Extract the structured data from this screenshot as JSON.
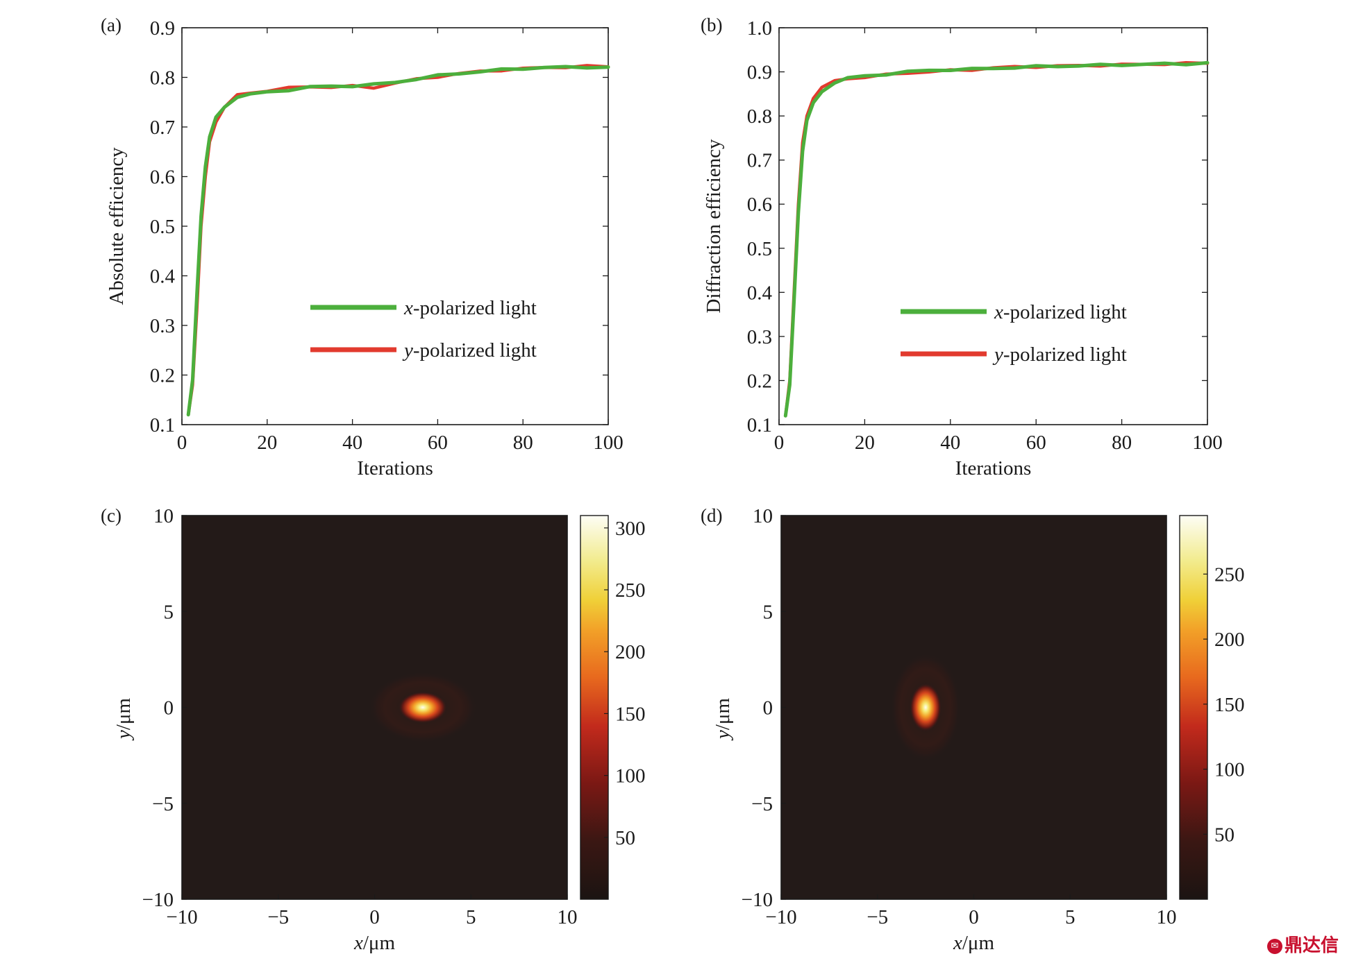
{
  "panels": {
    "a": {
      "label": "(a)"
    },
    "b": {
      "label": "(b)"
    },
    "c": {
      "label": "(c)"
    },
    "d": {
      "label": "(d)"
    }
  },
  "colors": {
    "x_series": "#4caf3c",
    "y_series": "#e23a2e",
    "heatmap_bg": "#231a18"
  },
  "watermark": {
    "text": "鼎达信"
  },
  "chart_data": [
    {
      "panel": "(a)",
      "type": "line",
      "title": "",
      "xlabel": "Iterations",
      "ylabel": "Absolute efficiency",
      "xlim": [
        0,
        100
      ],
      "ylim": [
        0.1,
        0.9
      ],
      "xticks": [
        "0",
        "20",
        "40",
        "60",
        "80",
        "100"
      ],
      "yticks": [
        "0.1",
        "0.2",
        "0.3",
        "0.4",
        "0.5",
        "0.6",
        "0.7",
        "0.8",
        "0.9"
      ],
      "legend": {
        "placement": "center-right",
        "entries": [
          {
            "prefix": "x",
            "text": "-polarized light"
          },
          {
            "prefix": "y",
            "text": "-polarized light"
          }
        ]
      },
      "series": [
        {
          "name": "x-polarized light",
          "color": "#4caf3c",
          "points": [
            [
              1.5,
              0.12
            ],
            [
              2.5,
              0.19
            ],
            [
              3.5,
              0.36
            ],
            [
              4.5,
              0.52
            ],
            [
              5.5,
              0.62
            ],
            [
              6.5,
              0.68
            ],
            [
              8,
              0.72
            ],
            [
              10,
              0.74
            ],
            [
              13,
              0.76
            ],
            [
              16,
              0.765
            ],
            [
              20,
              0.77
            ],
            [
              25,
              0.775
            ],
            [
              30,
              0.78
            ],
            [
              35,
              0.782
            ],
            [
              40,
              0.783
            ],
            [
              45,
              0.785
            ],
            [
              50,
              0.79
            ],
            [
              55,
              0.797
            ],
            [
              60,
              0.803
            ],
            [
              65,
              0.808
            ],
            [
              70,
              0.812
            ],
            [
              75,
              0.815
            ],
            [
              80,
              0.818
            ],
            [
              85,
              0.82
            ],
            [
              90,
              0.82
            ],
            [
              95,
              0.821
            ],
            [
              100,
              0.82
            ]
          ]
        },
        {
          "name": "y-polarized light",
          "color": "#e23a2e",
          "points": [
            [
              1.5,
              0.12
            ],
            [
              2.5,
              0.18
            ],
            [
              3.5,
              0.33
            ],
            [
              4.5,
              0.5
            ],
            [
              5.5,
              0.6
            ],
            [
              6.5,
              0.67
            ],
            [
              8,
              0.71
            ],
            [
              10,
              0.74
            ],
            [
              13,
              0.765
            ],
            [
              16,
              0.77
            ],
            [
              20,
              0.773
            ],
            [
              25,
              0.778
            ],
            [
              30,
              0.782
            ],
            [
              35,
              0.78
            ],
            [
              40,
              0.782
            ],
            [
              45,
              0.78
            ],
            [
              50,
              0.788
            ],
            [
              55,
              0.796
            ],
            [
              60,
              0.802
            ],
            [
              65,
              0.807
            ],
            [
              70,
              0.812
            ],
            [
              75,
              0.815
            ],
            [
              80,
              0.817
            ],
            [
              85,
              0.82
            ],
            [
              90,
              0.821
            ],
            [
              95,
              0.822
            ],
            [
              100,
              0.822
            ]
          ]
        }
      ]
    },
    {
      "panel": "(b)",
      "type": "line",
      "title": "",
      "xlabel": "Iterations",
      "ylabel": "Diffraction efficiency",
      "xlim": [
        0,
        100
      ],
      "ylim": [
        0.1,
        1.0
      ],
      "xticks": [
        "0",
        "20",
        "40",
        "60",
        "80",
        "100"
      ],
      "yticks": [
        "0.1",
        "0.2",
        "0.3",
        "0.4",
        "0.5",
        "0.6",
        "0.7",
        "0.8",
        "0.9",
        "1.0"
      ],
      "legend": {
        "placement": "center-right",
        "entries": [
          {
            "prefix": "x",
            "text": "-polarized light"
          },
          {
            "prefix": "y",
            "text": "-polarized light"
          }
        ]
      },
      "series": [
        {
          "name": "x-polarized light",
          "color": "#4caf3c",
          "points": [
            [
              1.5,
              0.12
            ],
            [
              2.5,
              0.19
            ],
            [
              3.5,
              0.38
            ],
            [
              4.5,
              0.58
            ],
            [
              5.5,
              0.72
            ],
            [
              6.5,
              0.79
            ],
            [
              8,
              0.83
            ],
            [
              10,
              0.855
            ],
            [
              13,
              0.875
            ],
            [
              16,
              0.885
            ],
            [
              20,
              0.89
            ],
            [
              25,
              0.895
            ],
            [
              30,
              0.9
            ],
            [
              35,
              0.903
            ],
            [
              40,
              0.905
            ],
            [
              45,
              0.906
            ],
            [
              50,
              0.908
            ],
            [
              55,
              0.91
            ],
            [
              60,
              0.912
            ],
            [
              65,
              0.913
            ],
            [
              70,
              0.914
            ],
            [
              75,
              0.915
            ],
            [
              80,
              0.916
            ],
            [
              85,
              0.917
            ],
            [
              90,
              0.918
            ],
            [
              95,
              0.918
            ],
            [
              100,
              0.92
            ]
          ]
        },
        {
          "name": "y-polarized light",
          "color": "#e23a2e",
          "points": [
            [
              1.5,
              0.12
            ],
            [
              2.5,
              0.2
            ],
            [
              3.5,
              0.4
            ],
            [
              4.5,
              0.6
            ],
            [
              5.5,
              0.74
            ],
            [
              6.5,
              0.8
            ],
            [
              8,
              0.84
            ],
            [
              10,
              0.865
            ],
            [
              13,
              0.88
            ],
            [
              16,
              0.886
            ],
            [
              20,
              0.888
            ],
            [
              25,
              0.893
            ],
            [
              30,
              0.898
            ],
            [
              35,
              0.9
            ],
            [
              40,
              0.903
            ],
            [
              45,
              0.905
            ],
            [
              50,
              0.909
            ],
            [
              55,
              0.911
            ],
            [
              60,
              0.912
            ],
            [
              65,
              0.913
            ],
            [
              70,
              0.914
            ],
            [
              75,
              0.915
            ],
            [
              80,
              0.916
            ],
            [
              85,
              0.917
            ],
            [
              90,
              0.918
            ],
            [
              95,
              0.919
            ],
            [
              100,
              0.92
            ]
          ]
        }
      ]
    },
    {
      "panel": "(c)",
      "type": "heatmap",
      "title": "",
      "xlabel_var": "x",
      "xlabel_unit": "/μm",
      "ylabel_var": "y",
      "ylabel_unit": "/μm",
      "xlim": [
        -10,
        10
      ],
      "ylim": [
        -10,
        10
      ],
      "xticks": [
        "−10",
        "−5",
        "0",
        "5",
        "10"
      ],
      "yticks": [
        "−10",
        "−5",
        "0",
        "5",
        "10"
      ],
      "colorbar": {
        "min": 0,
        "max": 310,
        "ticks": [
          "50",
          "100",
          "150",
          "200",
          "250",
          "300"
        ]
      },
      "spot": {
        "x": 2.5,
        "y": 0,
        "peak": 310,
        "shape": "horizontally elongated"
      }
    },
    {
      "panel": "(d)",
      "type": "heatmap",
      "title": "",
      "xlabel_var": "x",
      "xlabel_unit": "/μm",
      "ylabel_var": "y",
      "ylabel_unit": "/μm",
      "xlim": [
        -10,
        10
      ],
      "ylim": [
        -10,
        10
      ],
      "xticks": [
        "−10",
        "−5",
        "0",
        "5",
        "10"
      ],
      "yticks": [
        "−10",
        "−5",
        "0",
        "5",
        "10"
      ],
      "colorbar": {
        "min": 0,
        "max": 295,
        "ticks": [
          "50",
          "100",
          "150",
          "200",
          "250"
        ]
      },
      "spot": {
        "x": -2.5,
        "y": 0,
        "peak": 295,
        "shape": "vertically elongated"
      }
    }
  ]
}
